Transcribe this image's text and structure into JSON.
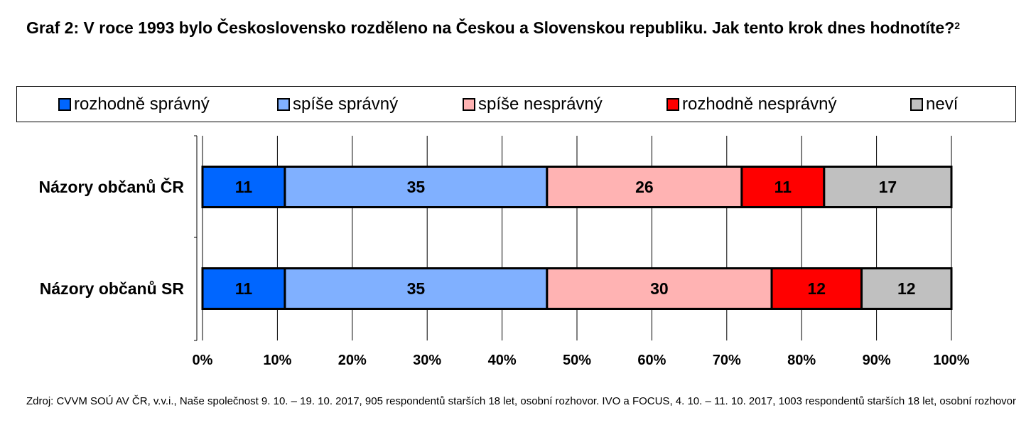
{
  "title": {
    "main": "Graf 2: V roce 1993 bylo Československo rozděleno na Českou a Slovenskou republiku. Jak tento krok dnes hodnotíte?",
    "footnote_mark": "2"
  },
  "source": "Zdroj: CVVM SOÚ AV ČR, v.v.i., Naše společnost 9. 10. – 19. 10. 2017, 905 respondentů starších 18 let, osobní rozhovor. IVO a FOCUS, 4. 10. – 11. 10. 2017, 1003 respondentů starších 18 let, osobní rozhovor",
  "chart_data": {
    "type": "bar",
    "orientation": "horizontal",
    "stacked": "percent",
    "categories": [
      "Názory občanů ČR",
      "Názory občanů SR"
    ],
    "series": [
      {
        "name": "rozhodně správný",
        "color": "#0066ff",
        "values": [
          11,
          11
        ]
      },
      {
        "name": "spíše správný",
        "color": "#80b0ff",
        "values": [
          35,
          35
        ]
      },
      {
        "name": "spíše nesprávný",
        "color": "#ffb3b3",
        "values": [
          26,
          30
        ]
      },
      {
        "name": "rozhodně nesprávný",
        "color": "#ff0000",
        "values": [
          11,
          12
        ]
      },
      {
        "name": "neví",
        "color": "#c0c0c0",
        "values": [
          17,
          12
        ]
      }
    ],
    "xlim": [
      0,
      100
    ],
    "x_ticks": [
      "0%",
      "10%",
      "20%",
      "30%",
      "40%",
      "50%",
      "60%",
      "70%",
      "80%",
      "90%",
      "100%"
    ],
    "grid": "vertical",
    "legend_position": "top"
  }
}
